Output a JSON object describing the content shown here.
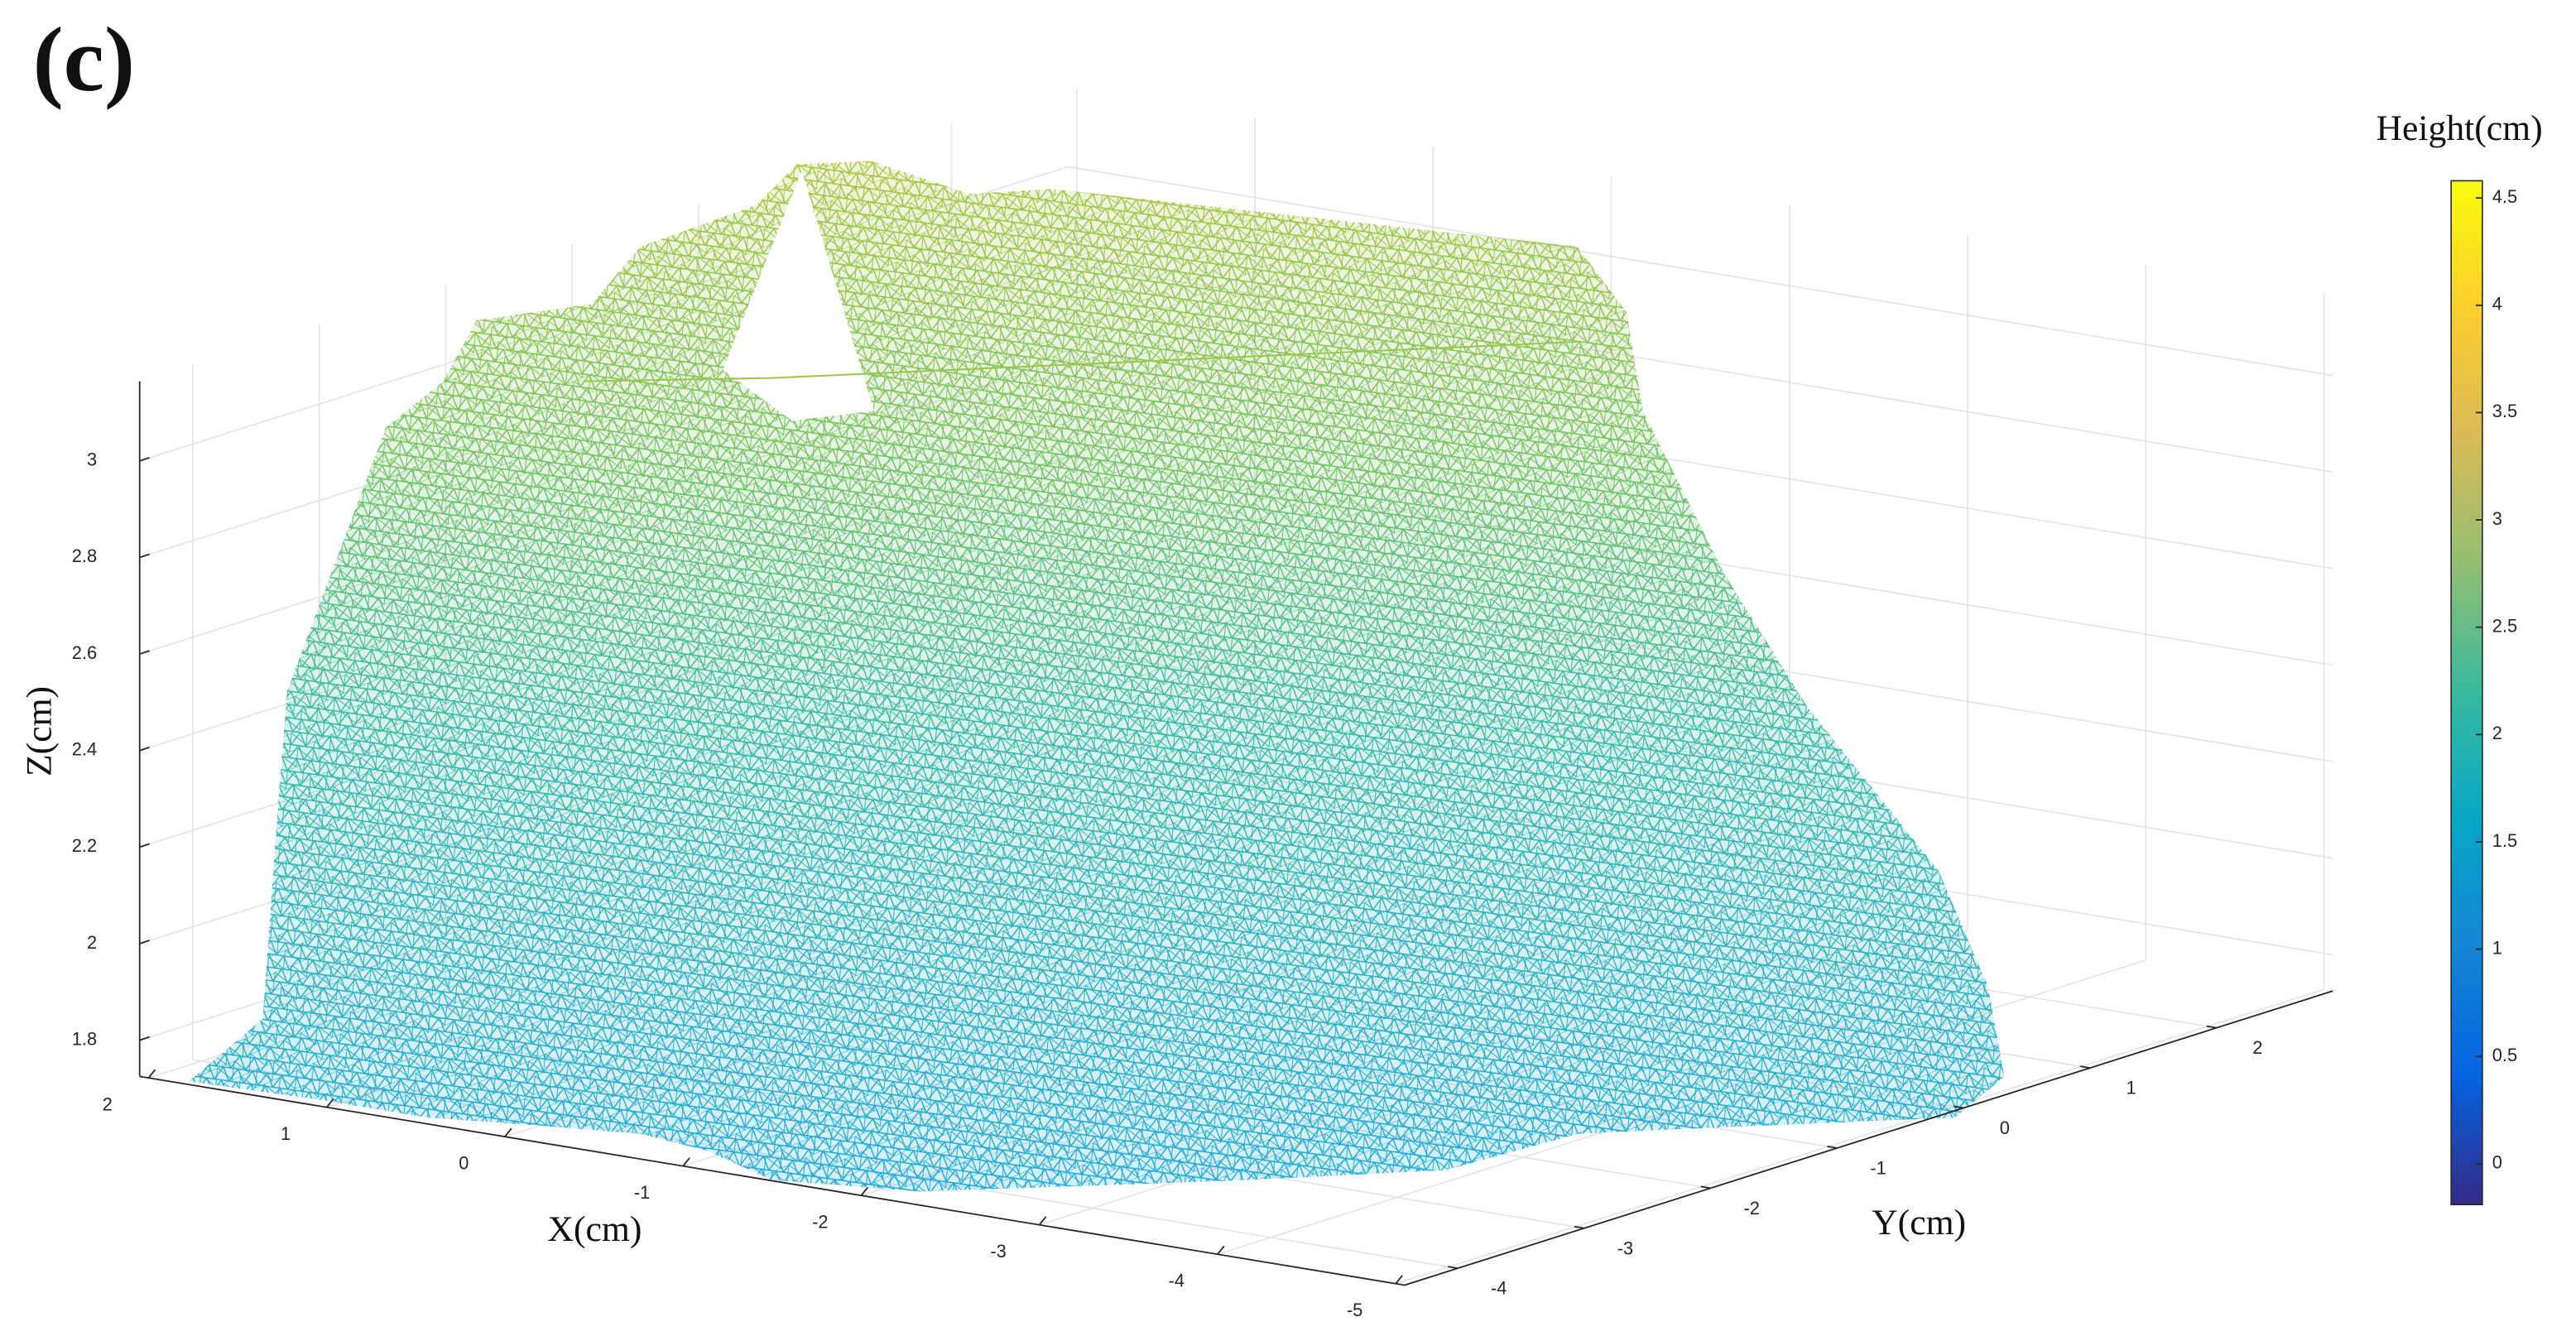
{
  "chart_data": {
    "type": "mesh3d",
    "title": "(c)",
    "x_label": "X(cm)",
    "y_label": "Y(cm)",
    "z_label": "Z(cm)",
    "xlim": [
      2.05,
      -5.05
    ],
    "xticks": [
      2,
      1,
      0,
      -1,
      -2,
      -3,
      -4,
      -5
    ],
    "ylim": [
      -4.42,
      2.92
    ],
    "yticks": [
      -4,
      -3,
      -2,
      -1,
      0,
      1,
      2
    ],
    "zlim": [
      1.725,
      3.165
    ],
    "zticks": [
      1.8,
      2,
      2.2,
      2.4,
      2.6,
      2.8,
      3
    ],
    "grid": true,
    "colorbar": {
      "title": "Height(cm)",
      "clim": [
        -0.19,
        4.58
      ],
      "ticks": [
        0,
        0.5,
        1,
        1.5,
        2,
        2.5,
        3,
        3.5,
        4,
        4.5
      ],
      "colormap": [
        "#352a87",
        "#0363e1",
        "#1485d4",
        "#06a7c6",
        "#38b99e",
        "#92bf73",
        "#d9ba56",
        "#fcce2e",
        "#f9fb0e"
      ]
    }
  }
}
